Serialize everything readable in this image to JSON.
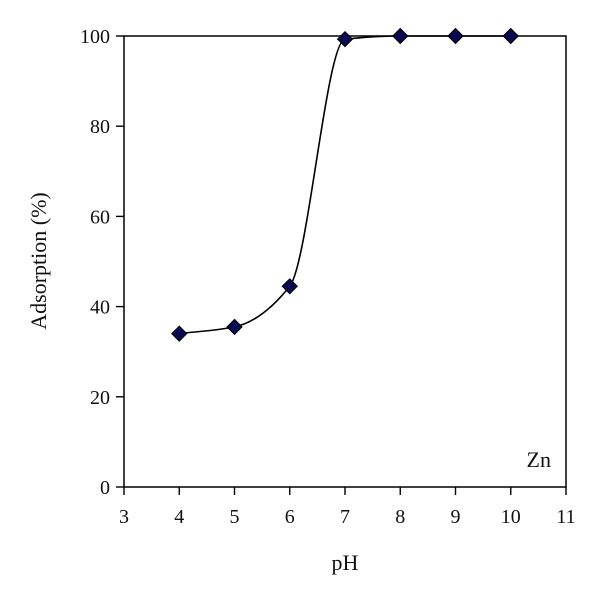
{
  "chart_data": {
    "type": "scatter",
    "title": "",
    "xlabel": "pH",
    "ylabel": "Adsorption (%)",
    "xlim": [
      3,
      11
    ],
    "ylim": [
      0,
      100
    ],
    "xticks": [
      3,
      4,
      5,
      6,
      7,
      8,
      9,
      10,
      11
    ],
    "yticks": [
      0,
      20,
      40,
      60,
      80,
      100
    ],
    "grid": false,
    "series": [
      {
        "x": [
          4,
          5,
          6,
          7,
          8,
          9,
          10
        ],
        "y": [
          34,
          35.5,
          44.5,
          99.3,
          100,
          100,
          100
        ],
        "marker": "diamond",
        "marker_color": "#0a0a50",
        "line": "smooth"
      }
    ],
    "annotations": [
      {
        "text": "Zn",
        "position": "bottom-right"
      }
    ]
  }
}
